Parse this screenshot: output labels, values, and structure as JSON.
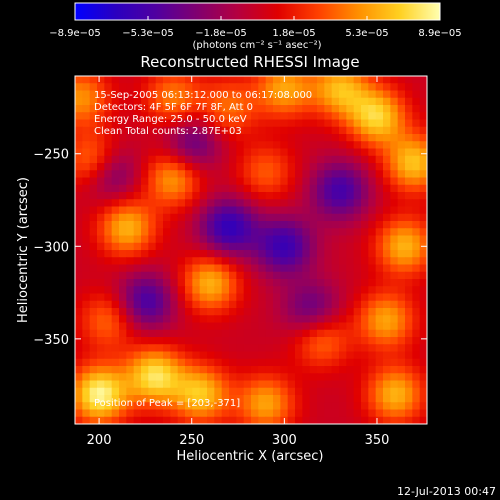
{
  "chart_data": {
    "type": "heatmap",
    "title": "Reconstructed RHESSI Image",
    "xlabel": "Heliocentric X (arcsec)",
    "ylabel": "Heliocentric Y (arcsec)",
    "xlim": [
      187,
      377
    ],
    "ylim": [
      -396,
      -208
    ],
    "x_ticks": [
      200,
      250,
      300,
      350
    ],
    "x_tick_labels": [
      "200",
      "250",
      "300",
      "350"
    ],
    "y_ticks": [
      -250,
      -300,
      -350
    ],
    "y_tick_labels": [
      "−250",
      "−300",
      "−350"
    ],
    "colorbar": {
      "min": -8.9e-05,
      "max": 8.9e-05,
      "tick_labels": [
        "−8.9e−05",
        "−5.3e−05",
        "−1.8e−05",
        "1.8e−05",
        "5.3e−05",
        "8.9e−05"
      ],
      "units": "(photons cm⁻² s⁻¹ asec⁻²)",
      "stops": [
        "#0000ff",
        "#2a00c0",
        "#5000a0",
        "#800070",
        "#b40040",
        "#e00000",
        "#ff4000",
        "#ff9000",
        "#ffd020",
        "#ffffb0"
      ]
    },
    "annotations": [
      "15-Sep-2005 06:13:12.000 to 06:17:08.000",
      "Detectors: 4F 5F 6F 7F 8F, Att 0",
      "Energy Range: 25.0 - 50.0 keV",
      "Clean     Total counts: 2.87E+03",
      "Position of Peak = [203,-371]"
    ],
    "peak": [
      203,
      -371
    ],
    "sources": [
      {
        "x": 200,
        "y": -380,
        "value": 8.5e-05
      },
      {
        "x": 198,
        "y": -255,
        "value": 6.5e-05
      },
      {
        "x": 215,
        "y": -290,
        "value": 6e-05
      },
      {
        "x": 230,
        "y": -370,
        "value": 7.5e-05
      },
      {
        "x": 255,
        "y": -380,
        "value": 6.5e-05
      },
      {
        "x": 290,
        "y": -385,
        "value": 5.5e-05
      },
      {
        "x": 360,
        "y": -380,
        "value": 6e-05
      },
      {
        "x": 355,
        "y": -340,
        "value": 5.5e-05
      },
      {
        "x": 365,
        "y": -300,
        "value": 6e-05
      },
      {
        "x": 370,
        "y": -255,
        "value": 6.5e-05
      },
      {
        "x": 350,
        "y": -230,
        "value": 7e-05
      },
      {
        "x": 330,
        "y": -215,
        "value": 6e-05
      },
      {
        "x": 300,
        "y": -215,
        "value": 5.5e-05
      },
      {
        "x": 270,
        "y": -225,
        "value": 4e-05
      },
      {
        "x": 240,
        "y": -220,
        "value": 4.5e-05
      },
      {
        "x": 190,
        "y": -220,
        "value": 5e-05
      },
      {
        "x": 260,
        "y": -320,
        "value": 6e-05
      },
      {
        "x": 240,
        "y": -263,
        "value": 5.5e-05
      },
      {
        "x": 290,
        "y": -260,
        "value": 3.5e-05
      },
      {
        "x": 205,
        "y": -340,
        "value": 4e-05
      },
      {
        "x": 320,
        "y": -350,
        "value": 4.5e-05
      },
      {
        "x": 205,
        "y": -260,
        "value": -6e-05
      },
      {
        "x": 270,
        "y": -290,
        "value": -6.5e-05
      },
      {
        "x": 300,
        "y": -300,
        "value": -6e-05
      },
      {
        "x": 225,
        "y": -330,
        "value": -5.5e-05
      },
      {
        "x": 315,
        "y": -335,
        "value": -4.5e-05
      },
      {
        "x": 330,
        "y": -270,
        "value": -5.5e-05
      },
      {
        "x": 250,
        "y": -245,
        "value": -4.5e-05
      }
    ]
  },
  "footer": {
    "timestamp": "12-Jul-2013 00:47"
  }
}
